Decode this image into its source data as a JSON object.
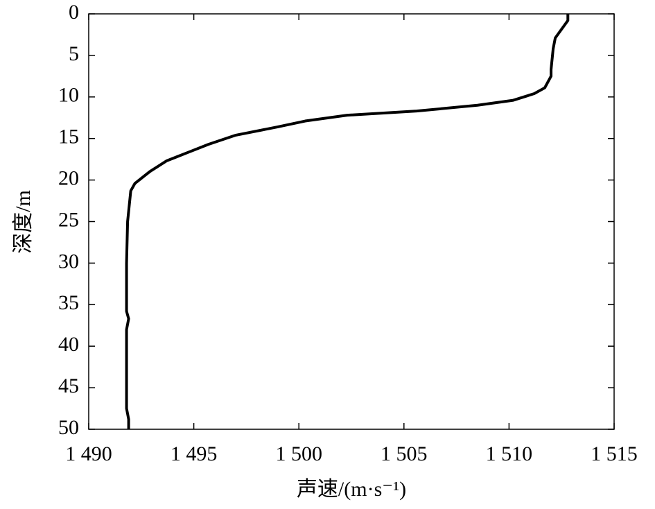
{
  "chart_data": {
    "type": "line",
    "x_label": "声速/(m·s⁻¹)",
    "y_label": "深度/m",
    "xlim": [
      1490,
      1515
    ],
    "ylim": [
      0,
      50
    ],
    "y_inverted": true,
    "xticks": [
      {
        "value": 1490,
        "label": "1 490"
      },
      {
        "value": 1495,
        "label": "1 495"
      },
      {
        "value": 1500,
        "label": "1 500"
      },
      {
        "value": 1505,
        "label": "1 505"
      },
      {
        "value": 1510,
        "label": "1 510"
      },
      {
        "value": 1515,
        "label": "1 515"
      }
    ],
    "yticks": [
      0,
      5,
      10,
      15,
      20,
      25,
      30,
      35,
      40,
      45,
      50
    ],
    "series": [
      {
        "color": "#000000",
        "x": [
          1512.8,
          1512.8,
          1512.2,
          1512.1,
          1512.0,
          1512.0,
          1511.7,
          1511.2,
          1510.2,
          1508.5,
          1505.6,
          1502.3,
          1500.3,
          1499.0,
          1497.0,
          1495.7,
          1494.7,
          1493.7,
          1492.9,
          1492.2,
          1492.0,
          1491.85,
          1491.8,
          1491.8,
          1491.9,
          1491.8,
          1491.8,
          1491.8,
          1491.9,
          1491.9
        ],
        "values": [
          0,
          0.8,
          2.9,
          4.2,
          6.7,
          7.5,
          8.9,
          9.6,
          10.4,
          11,
          11.7,
          12.2,
          12.9,
          13.6,
          14.6,
          15.7,
          16.7,
          17.7,
          19.0,
          20.4,
          21.3,
          25,
          30,
          35.8,
          36.7,
          38,
          46.7,
          47.5,
          48.8,
          50
        ]
      }
    ]
  }
}
